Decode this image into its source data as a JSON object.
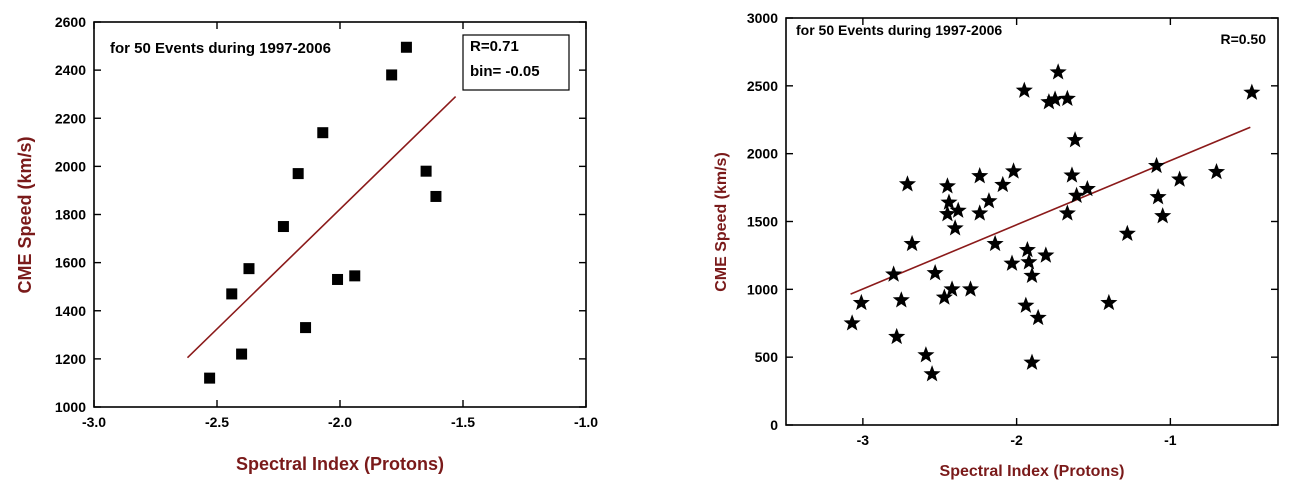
{
  "chart_data": [
    {
      "type": "scatter",
      "title": "for 50 Events during 1997-2006",
      "annotation_lines": [
        "R=0.71",
        "bin= -0.05"
      ],
      "annotation_boxed": true,
      "xlabel": "Spectral Index (Protons)",
      "ylabel": "CME Speed (km/s)",
      "xlim": [
        -3.0,
        -1.0
      ],
      "ylim": [
        1000,
        2600
      ],
      "xticks": [
        -3.0,
        -2.5,
        -2.0,
        -1.5,
        -1.0
      ],
      "xtick_labels": [
        "-3.0",
        "-2.5",
        "-2.0",
        "-1.5",
        "-1.0"
      ],
      "yticks": [
        1000,
        1200,
        1400,
        1600,
        1800,
        2000,
        2200,
        2400,
        2600
      ],
      "ytick_labels": [
        "1000",
        "1200",
        "1400",
        "1600",
        "1800",
        "2000",
        "2200",
        "2400",
        "2600"
      ],
      "marker": "square",
      "marker_color": "#000000",
      "fit_color": "#8b1a1a",
      "axis_label_color": "#7a1a1a",
      "grid": false,
      "points": [
        {
          "x": -2.53,
          "y": 1120
        },
        {
          "x": -2.4,
          "y": 1220
        },
        {
          "x": -2.44,
          "y": 1470
        },
        {
          "x": -2.37,
          "y": 1575
        },
        {
          "x": -2.23,
          "y": 1750
        },
        {
          "x": -2.17,
          "y": 1970
        },
        {
          "x": -2.14,
          "y": 1330
        },
        {
          "x": -2.07,
          "y": 2140
        },
        {
          "x": -2.01,
          "y": 1530
        },
        {
          "x": -1.94,
          "y": 1545
        },
        {
          "x": -1.79,
          "y": 2380
        },
        {
          "x": -1.73,
          "y": 2495
        },
        {
          "x": -1.65,
          "y": 1980
        },
        {
          "x": -1.61,
          "y": 1875
        }
      ],
      "fit_line": [
        {
          "x": -2.62,
          "y": 1205
        },
        {
          "x": -1.53,
          "y": 2290
        }
      ]
    },
    {
      "type": "scatter",
      "title": "for 50 Events during 1997-2006",
      "annotation_lines": [
        "R=0.50"
      ],
      "annotation_boxed": false,
      "xlabel": "Spectral Index (Protons)",
      "ylabel": "CME Speed (km/s)",
      "xlim": [
        -3.5,
        -0.3
      ],
      "ylim": [
        0,
        3000
      ],
      "xticks": [
        -3,
        -2,
        -1
      ],
      "xtick_labels": [
        "-3",
        "-2",
        "-1"
      ],
      "yticks": [
        0,
        500,
        1000,
        1500,
        2000,
        2500,
        3000
      ],
      "ytick_labels": [
        "0",
        "500",
        "1000",
        "1500",
        "2000",
        "2500",
        "3000"
      ],
      "marker": "star",
      "marker_color": "#000000",
      "fit_color": "#8b1a1a",
      "axis_label_color": "#7a1a1a",
      "grid": false,
      "points": [
        {
          "x": -3.07,
          "y": 750
        },
        {
          "x": -3.01,
          "y": 900
        },
        {
          "x": -2.8,
          "y": 1110
        },
        {
          "x": -2.78,
          "y": 650
        },
        {
          "x": -2.75,
          "y": 920
        },
        {
          "x": -2.71,
          "y": 1775
        },
        {
          "x": -2.68,
          "y": 1335
        },
        {
          "x": -2.59,
          "y": 515
        },
        {
          "x": -2.55,
          "y": 375
        },
        {
          "x": -2.53,
          "y": 1120
        },
        {
          "x": -2.47,
          "y": 940
        },
        {
          "x": -2.45,
          "y": 1760
        },
        {
          "x": -2.45,
          "y": 1555
        },
        {
          "x": -2.44,
          "y": 1640
        },
        {
          "x": -2.42,
          "y": 1000
        },
        {
          "x": -2.4,
          "y": 1450
        },
        {
          "x": -2.38,
          "y": 1580
        },
        {
          "x": -2.3,
          "y": 1000
        },
        {
          "x": -2.24,
          "y": 1835
        },
        {
          "x": -2.24,
          "y": 1560
        },
        {
          "x": -2.18,
          "y": 1650
        },
        {
          "x": -2.14,
          "y": 1335
        },
        {
          "x": -2.09,
          "y": 1770
        },
        {
          "x": -2.02,
          "y": 1870
        },
        {
          "x": -2.03,
          "y": 1190
        },
        {
          "x": -1.95,
          "y": 2465
        },
        {
          "x": -1.94,
          "y": 880
        },
        {
          "x": -1.93,
          "y": 1290
        },
        {
          "x": -1.92,
          "y": 1200
        },
        {
          "x": -1.9,
          "y": 1100
        },
        {
          "x": -1.9,
          "y": 460
        },
        {
          "x": -1.86,
          "y": 790
        },
        {
          "x": -1.81,
          "y": 1250
        },
        {
          "x": -1.79,
          "y": 2380
        },
        {
          "x": -1.75,
          "y": 2400
        },
        {
          "x": -1.73,
          "y": 2600
        },
        {
          "x": -1.67,
          "y": 2405
        },
        {
          "x": -1.67,
          "y": 1560
        },
        {
          "x": -1.64,
          "y": 1840
        },
        {
          "x": -1.62,
          "y": 2100
        },
        {
          "x": -1.61,
          "y": 1690
        },
        {
          "x": -1.54,
          "y": 1740
        },
        {
          "x": -1.4,
          "y": 900
        },
        {
          "x": -1.28,
          "y": 1410
        },
        {
          "x": -1.09,
          "y": 1910
        },
        {
          "x": -1.08,
          "y": 1680
        },
        {
          "x": -1.05,
          "y": 1540
        },
        {
          "x": -0.94,
          "y": 1810
        },
        {
          "x": -0.7,
          "y": 1865
        },
        {
          "x": -0.47,
          "y": 2450
        }
      ],
      "fit_line": [
        {
          "x": -3.08,
          "y": 965
        },
        {
          "x": -0.48,
          "y": 2195
        }
      ]
    }
  ]
}
